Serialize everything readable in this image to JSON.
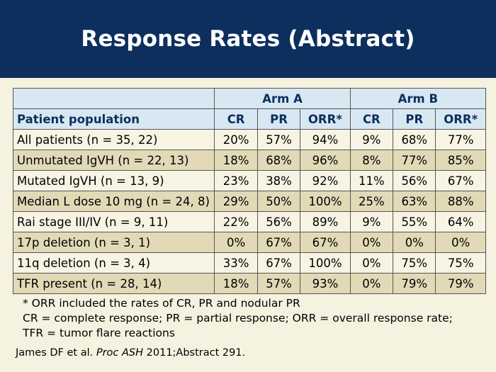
{
  "title": "Response Rates (Abstract)",
  "table": {
    "population_header": "Patient population",
    "arms": [
      {
        "name": "Arm A",
        "columns": [
          "CR",
          "PR",
          "ORR*"
        ]
      },
      {
        "name": "Arm B",
        "columns": [
          "CR",
          "PR",
          "ORR*"
        ]
      }
    ],
    "rows": [
      {
        "population": "All patients (n = 35, 22)",
        "values": [
          "20%",
          "57%",
          "94%",
          "9%",
          "68%",
          "77%"
        ]
      },
      {
        "population": "Unmutated IgVH (n = 22, 13)",
        "values": [
          "18%",
          "68%",
          "96%",
          "8%",
          "77%",
          "85%"
        ]
      },
      {
        "population": "Mutated IgVH (n = 13, 9)",
        "values": [
          "23%",
          "38%",
          "92%",
          "11%",
          "56%",
          "67%"
        ]
      },
      {
        "population": "Median L dose 10 mg (n = 24, 8)",
        "values": [
          "29%",
          "50%",
          "100%",
          "25%",
          "63%",
          "88%"
        ]
      },
      {
        "population": "Rai stage III/IV (n = 9, 11)",
        "values": [
          "22%",
          "56%",
          "89%",
          "9%",
          "55%",
          "64%"
        ]
      },
      {
        "population": "17p deletion (n = 3, 1)",
        "values": [
          "0%",
          "67%",
          "67%",
          "0%",
          "0%",
          "0%"
        ]
      },
      {
        "population": "11q deletion (n = 3, 4)",
        "values": [
          "33%",
          "67%",
          "100%",
          "0%",
          "75%",
          "75%"
        ]
      },
      {
        "population": "TFR present (n = 28, 14)",
        "values": [
          "18%",
          "57%",
          "93%",
          "0%",
          "79%",
          "79%"
        ]
      }
    ]
  },
  "footnotes": [
    "* ORR included the rates of CR, PR and nodular PR",
    "CR = complete response; PR = partial response; ORR = overall response rate;",
    "TFR = tumor flare reactions"
  ],
  "citation": {
    "authors": "James DF et al.",
    "journal": "Proc ASH",
    "details": "2011;Abstract 291."
  },
  "colors": {
    "header_bg": "#0d2f5e",
    "table_header_bg": "#d7e8f2",
    "row_light": "#f7f4e4",
    "row_dark": "#e2d9b7"
  }
}
